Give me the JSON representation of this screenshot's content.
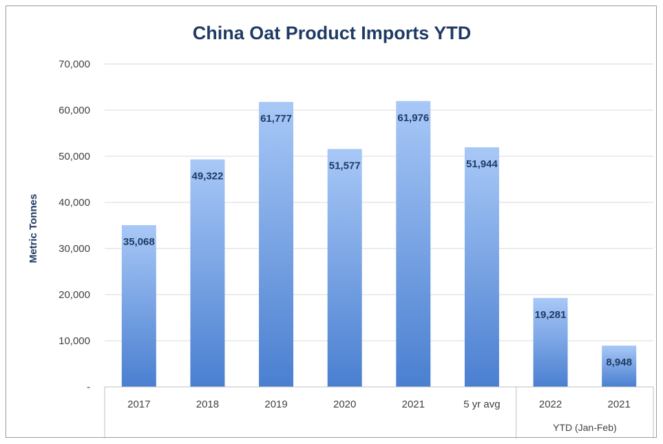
{
  "chart_data": {
    "type": "bar",
    "title": "China Oat Product Imports YTD",
    "ylabel": "Metric Tonnes",
    "xlabel": "",
    "categories": [
      "2017",
      "2018",
      "2019",
      "2020",
      "2021",
      "5 yr avg",
      "2022",
      "2021"
    ],
    "values": [
      35068,
      49322,
      61777,
      51577,
      61976,
      51944,
      19281,
      8948
    ],
    "data_labels": [
      "35,068",
      "49,322",
      "61,777",
      "51,577",
      "61,976",
      "51,944",
      "19,281",
      "8,948"
    ],
    "group_label": "YTD (Jan-Feb)",
    "group_categories": [
      6,
      7
    ],
    "ylim": [
      0,
      70000
    ],
    "yticks": [
      0,
      10000,
      20000,
      30000,
      40000,
      50000,
      60000,
      70000
    ],
    "ytick_labels": [
      "-",
      "10,000",
      "20,000",
      "30,000",
      "40,000",
      "50,000",
      "60,000",
      "70,000"
    ],
    "grid": true,
    "legend": "none",
    "colors": {
      "bar_top": "#a8c8f7",
      "bar_bottom": "#4a7fd0",
      "title": "#1f3b64",
      "grid": "#d9d9d9"
    }
  }
}
